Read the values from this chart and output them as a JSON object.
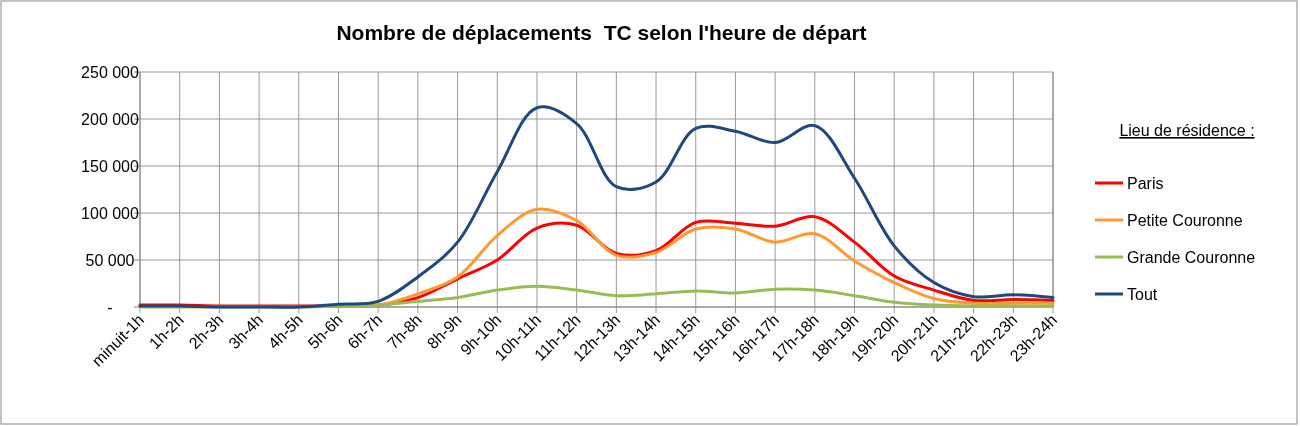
{
  "chart_data": {
    "type": "line",
    "title": "Nombre de déplacements  TC selon l'heure de départ",
    "categories": [
      "minuit-1h",
      "1h-2h",
      "2h-3h",
      "3h-4h",
      "4h-5h",
      "5h-6h",
      "6h-7h",
      "7h-8h",
      "8h-9h",
      "9h-10h",
      "10h-11h",
      "11h-12h",
      "12h-13h",
      "13h-14h",
      "14h-15h",
      "15h-16h",
      "16h-17h",
      "17h-18h",
      "18h-19h",
      "19h-20h",
      "20h-21h",
      "21h-22h",
      "22h-23h",
      "23h-24h"
    ],
    "series": [
      {
        "name": "Paris",
        "color": "#ff0000",
        "values": [
          2000,
          2000,
          1000,
          1000,
          1000,
          1000,
          2000,
          10000,
          30000,
          50000,
          84000,
          87000,
          57000,
          60000,
          90000,
          89000,
          86000,
          96000,
          69000,
          33000,
          18000,
          7000,
          8000,
          7000
        ]
      },
      {
        "name": "Petite Couronne",
        "color": "#ff9933",
        "values": [
          null,
          null,
          null,
          null,
          null,
          1000,
          2000,
          14000,
          32000,
          76000,
          104000,
          92000,
          55000,
          58000,
          83000,
          83000,
          69000,
          78000,
          49000,
          26000,
          9000,
          4000,
          4000,
          4000
        ]
      },
      {
        "name": "Grande Couronne",
        "color": "#99bb55",
        "values": [
          0,
          0,
          0,
          0,
          0,
          1000,
          2000,
          6000,
          10000,
          18000,
          22000,
          18000,
          12000,
          14000,
          17000,
          15000,
          19000,
          18000,
          12000,
          5000,
          2000,
          1000,
          1000,
          1000
        ]
      },
      {
        "name": "Tout",
        "color": "#1f497d",
        "values": [
          1000,
          1000,
          0,
          0,
          0,
          3000,
          6000,
          32000,
          69000,
          144000,
          212000,
          195000,
          128000,
          133000,
          190000,
          187000,
          175000,
          193000,
          137000,
          65000,
          26000,
          11000,
          13000,
          10000
        ]
      }
    ],
    "ylim": [
      0,
      250000
    ],
    "yticks": [
      {
        "value": 0,
        "label": "-"
      },
      {
        "value": 50000,
        "label": "50 000"
      },
      {
        "value": 100000,
        "label": "100 000"
      },
      {
        "value": 150000,
        "label": "150 000"
      },
      {
        "value": 200000,
        "label": "200 000"
      },
      {
        "value": 250000,
        "label": "250 000"
      }
    ],
    "grid": true,
    "legend": "right",
    "legend_title": "Lieu de résidence  :",
    "marker": "none",
    "line_style": "solid"
  }
}
